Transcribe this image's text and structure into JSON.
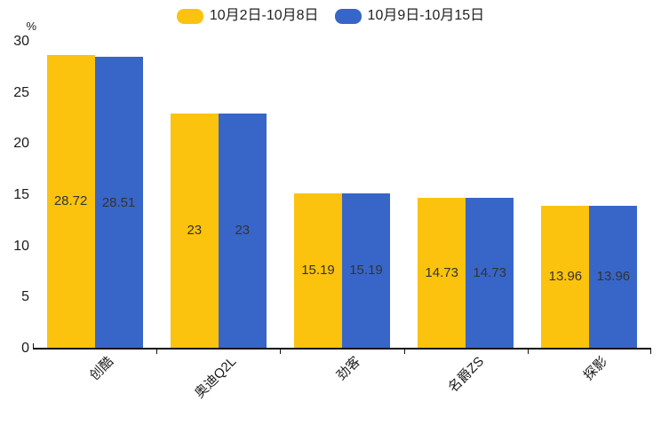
{
  "chart_data": {
    "type": "bar",
    "title": "",
    "ylabel": "%",
    "xlabel": "",
    "categories": [
      "创酷",
      "奥迪Q2L",
      "劲客",
      "名爵ZS",
      "探影"
    ],
    "series": [
      {
        "name": "10月2日-10月8日",
        "color": "#fbc30e",
        "values": [
          28.72,
          23,
          15.19,
          14.73,
          13.96
        ]
      },
      {
        "name": "10月9日-10月15日",
        "color": "#3866c8",
        "values": [
          28.51,
          23,
          15.19,
          14.73,
          13.96
        ]
      }
    ],
    "yticks": [
      0,
      5,
      10,
      15,
      20,
      25,
      30
    ],
    "ylim": [
      0,
      30
    ],
    "legend_position": "top",
    "grid": false,
    "value_label_position": "inside-center",
    "colors": {
      "axis": "#111111",
      "text": "#333333"
    }
  }
}
